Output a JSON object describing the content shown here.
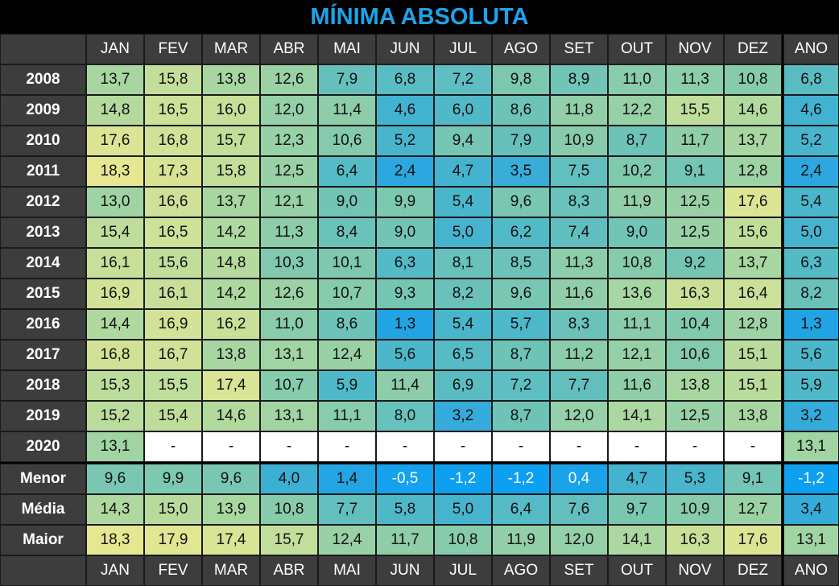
{
  "title": "MÍNIMA ABSOLUTA",
  "header": {
    "months": [
      "JAN",
      "FEV",
      "MAR",
      "ABR",
      "MAI",
      "JUN",
      "JUL",
      "AGO",
      "SET",
      "OUT",
      "NOV",
      "DEZ"
    ],
    "year": "ANO"
  },
  "rows": [
    {
      "label": "2008",
      "cells": [
        "13,7",
        "15,8",
        "13,8",
        "12,6",
        "7,9",
        "6,8",
        "7,2",
        "9,8",
        "8,9",
        "11,0",
        "11,3",
        "10,8"
      ],
      "year": "6,8"
    },
    {
      "label": "2009",
      "cells": [
        "14,8",
        "16,5",
        "16,0",
        "12,0",
        "11,4",
        "4,6",
        "6,0",
        "8,6",
        "11,8",
        "12,2",
        "15,5",
        "14,6"
      ],
      "year": "4,6"
    },
    {
      "label": "2010",
      "cells": [
        "17,6",
        "16,8",
        "15,7",
        "12,3",
        "10,6",
        "5,2",
        "9,4",
        "7,9",
        "10,9",
        "8,7",
        "11,7",
        "13,7"
      ],
      "year": "5,2"
    },
    {
      "label": "2011",
      "cells": [
        "18,3",
        "17,3",
        "15,8",
        "12,5",
        "6,4",
        "2,4",
        "4,7",
        "3,5",
        "7,5",
        "10,2",
        "9,1",
        "12,8"
      ],
      "year": "2,4"
    },
    {
      "label": "2012",
      "cells": [
        "13,0",
        "16,6",
        "13,7",
        "12,1",
        "9,0",
        "9,9",
        "5,4",
        "9,6",
        "8,3",
        "11,9",
        "12,5",
        "17,6"
      ],
      "year": "5,4"
    },
    {
      "label": "2013",
      "cells": [
        "15,4",
        "16,5",
        "14,2",
        "11,3",
        "8,4",
        "9,0",
        "5,0",
        "6,2",
        "7,4",
        "9,0",
        "12,5",
        "15,6"
      ],
      "year": "5,0"
    },
    {
      "label": "2014",
      "cells": [
        "16,1",
        "15,6",
        "14,8",
        "10,3",
        "10,1",
        "6,3",
        "8,1",
        "8,5",
        "11,3",
        "10,8",
        "9,2",
        "13,7"
      ],
      "year": "6,3"
    },
    {
      "label": "2015",
      "cells": [
        "16,9",
        "16,1",
        "14,2",
        "12,6",
        "10,7",
        "9,3",
        "8,2",
        "9,6",
        "11,6",
        "13,6",
        "16,3",
        "16,4"
      ],
      "year": "8,2"
    },
    {
      "label": "2016",
      "cells": [
        "14,4",
        "16,9",
        "16,2",
        "11,0",
        "8,6",
        "1,3",
        "5,4",
        "5,7",
        "8,3",
        "11,1",
        "10,4",
        "12,8"
      ],
      "year": "1,3"
    },
    {
      "label": "2017",
      "cells": [
        "16,8",
        "16,7",
        "13,8",
        "13,1",
        "12,4",
        "5,6",
        "6,5",
        "8,7",
        "11,2",
        "12,1",
        "10,6",
        "15,1"
      ],
      "year": "5,6"
    },
    {
      "label": "2018",
      "cells": [
        "15,3",
        "15,5",
        "17,4",
        "10,7",
        "5,9",
        "11,4",
        "6,9",
        "7,2",
        "7,7",
        "11,6",
        "13,8",
        "15,1"
      ],
      "year": "5,9"
    },
    {
      "label": "2019",
      "cells": [
        "15,2",
        "15,4",
        "14,6",
        "13,1",
        "11,1",
        "8,0",
        "3,2",
        "8,7",
        "12,0",
        "14,1",
        "12,5",
        "13,8"
      ],
      "year": "3,2"
    },
    {
      "label": "2020",
      "cells": [
        "13,1",
        "-",
        "-",
        "-",
        "-",
        "-",
        "-",
        "-",
        "-",
        "-",
        "-",
        "-"
      ],
      "year": "13,1"
    }
  ],
  "summary": [
    {
      "label": "Menor",
      "cells": [
        "9,6",
        "9,9",
        "9,6",
        "4,0",
        "1,4",
        "-0,5",
        "-1,2",
        "-1,2",
        "0,4",
        "4,7",
        "5,3",
        "9,1"
      ],
      "year": "-1,2"
    },
    {
      "label": "Média",
      "cells": [
        "14,3",
        "15,0",
        "13,9",
        "10,8",
        "7,7",
        "5,8",
        "5,0",
        "6,4",
        "7,6",
        "9,7",
        "10,9",
        "12,7"
      ],
      "year": "3,4"
    },
    {
      "label": "Maior",
      "cells": [
        "18,3",
        "17,9",
        "17,4",
        "15,7",
        "12,4",
        "11,7",
        "10,8",
        "11,9",
        "12,0",
        "14,1",
        "16,3",
        "17,6"
      ],
      "year": "13,1"
    }
  ]
}
